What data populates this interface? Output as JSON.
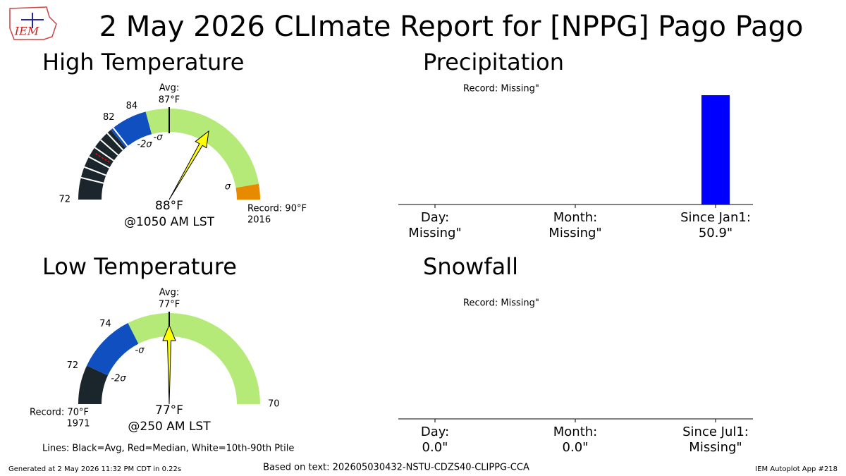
{
  "title": "2 May 2026 CLImate Report for [NPPG] Pago Pago",
  "logo": "IEM",
  "footer": {
    "left": "Generated at 2 May 2026 11:32 PM CDT in 0.22s",
    "center": "Based on text: 202605030432-NSTU-CDZS40-CLIPPG-CCA",
    "right": "IEM Autoplot App #218"
  },
  "chart_data": [
    {
      "type": "gauge",
      "title": "High Temperature",
      "value": 88,
      "value_label": "88°F",
      "time": "@1050 AM LST",
      "ticks": [
        72,
        82,
        84
      ],
      "avg_caption": "Avg:",
      "avg": {
        "value": 87,
        "label": "87°F"
      },
      "record": {
        "value": 90,
        "label": "Record: 90°F",
        "year": "2016"
      },
      "sigma_labels": [
        "-2σ",
        "-σ",
        "σ"
      ]
    },
    {
      "type": "gauge",
      "title": "Low Temperature",
      "value": 77,
      "value_label": "77°F",
      "time": "@250 AM LST",
      "ticks": [
        72,
        74,
        70
      ],
      "avg_caption": "Avg:",
      "avg": {
        "value": 77,
        "label": "77°F"
      },
      "record": {
        "value": 70,
        "label": "Record: 70°F",
        "year": "1971"
      },
      "sigma_labels": [
        "-2σ",
        "-σ"
      ],
      "note": "Lines: Black=Avg, Red=Median, White=10th-90th Ptile"
    },
    {
      "type": "bar",
      "title": "Precipitation",
      "annotation": "Record: Missing\"",
      "color": "#0000ff",
      "categories": [
        "Day:",
        "Month:",
        "Since Jan1:"
      ],
      "values": [
        null,
        null,
        50.9
      ],
      "value_labels": [
        "Missing\"",
        "Missing\"",
        "50.9\""
      ]
    },
    {
      "type": "bar",
      "title": "Snowfall",
      "annotation": "Record: Missing\"",
      "color": "#0000ff",
      "categories": [
        "Day:",
        "Month:",
        "Since Jul1:"
      ],
      "values": [
        0.0,
        0.0,
        null
      ],
      "value_labels": [
        "0.0\"",
        "0.0\"",
        "Missing\""
      ]
    }
  ]
}
